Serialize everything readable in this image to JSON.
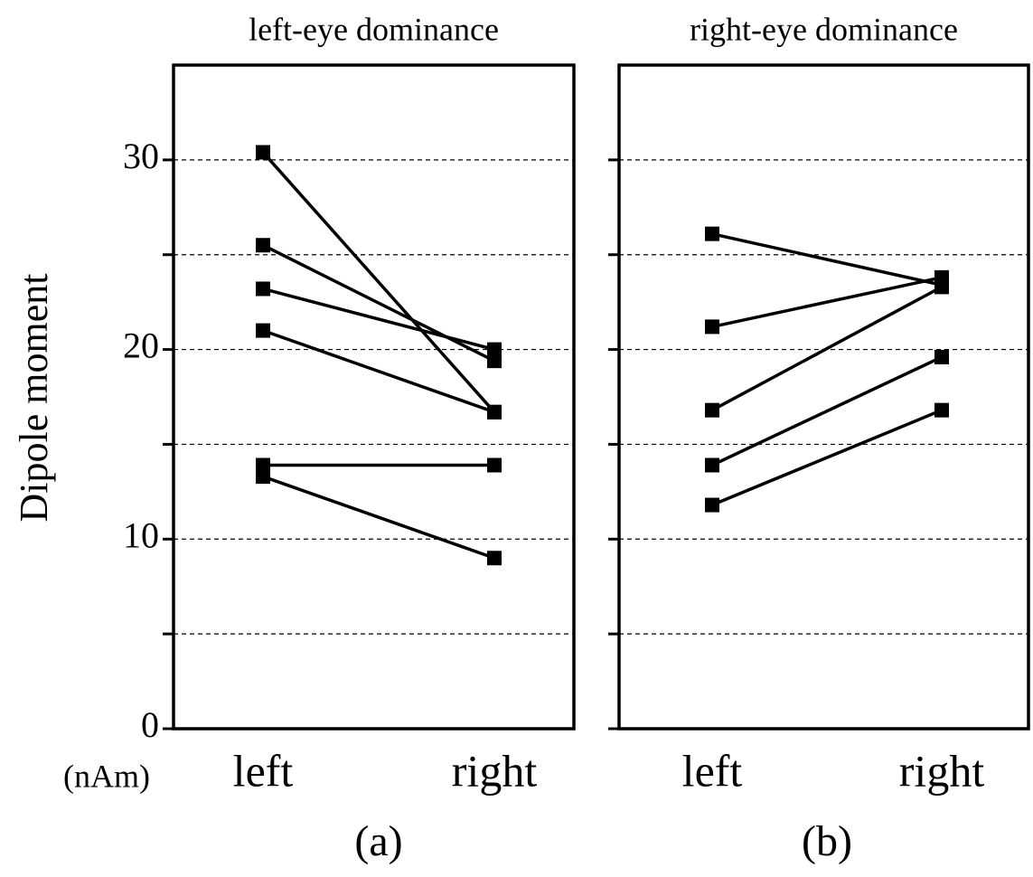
{
  "chart_data": [
    {
      "type": "line",
      "title": "left-eye dominance",
      "caption": "(a)",
      "y_label": "Dipole moment",
      "y_unit": "(nAm)",
      "categories": [
        "left",
        "right"
      ],
      "color": "#000000",
      "series": [
        {
          "values": [
            30.4,
            16.7
          ]
        },
        {
          "values": [
            25.5,
            19.4
          ]
        },
        {
          "values": [
            23.2,
            20.0
          ]
        },
        {
          "values": [
            21.0,
            16.7
          ]
        },
        {
          "values": [
            13.9,
            13.9
          ]
        },
        {
          "values": [
            13.3,
            9.0
          ]
        }
      ],
      "ylim": [
        0,
        35
      ],
      "yticks": [
        0,
        10,
        20,
        30
      ],
      "minor_yticks": [
        5,
        15,
        25
      ],
      "grid": true,
      "tick_labels": true
    },
    {
      "type": "line",
      "title": "right-eye dominance",
      "caption": "(b)",
      "categories": [
        "left",
        "right"
      ],
      "color": "#000000",
      "series": [
        {
          "values": [
            26.1,
            23.4
          ]
        },
        {
          "values": [
            21.2,
            23.8
          ]
        },
        {
          "values": [
            16.8,
            23.3
          ]
        },
        {
          "values": [
            13.9,
            19.6
          ]
        },
        {
          "values": [
            11.8,
            16.8
          ]
        }
      ],
      "ylim": [
        0,
        35
      ],
      "yticks": [
        0,
        10,
        20,
        30
      ],
      "minor_yticks": [
        5,
        15,
        25
      ],
      "grid": true,
      "tick_labels": false
    }
  ]
}
